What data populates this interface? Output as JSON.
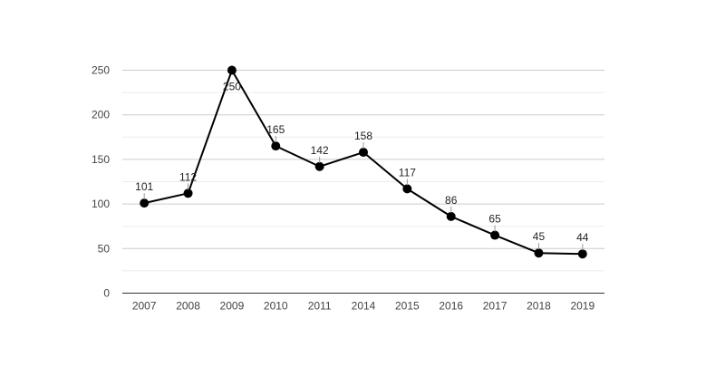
{
  "chart_data": {
    "type": "line",
    "title": "",
    "xlabel": "",
    "ylabel": "",
    "categories": [
      "2007",
      "2008",
      "2009",
      "2010",
      "2011",
      "2014",
      "2015",
      "2016",
      "2017",
      "2018",
      "2019"
    ],
    "series": [
      {
        "values": [
          101,
          112,
          250,
          165,
          142,
          158,
          117,
          86,
          65,
          45,
          44
        ]
      }
    ],
    "ylim": [
      0,
      250
    ],
    "yticks": [
      0,
      50,
      100,
      150,
      200,
      250
    ],
    "minor_gridlines": [
      25,
      75,
      125,
      175,
      225
    ],
    "grid": true,
    "legend": "none",
    "data_labels": true,
    "colors": {
      "line": "#000000",
      "marker": "#000000",
      "grid_major": "#cccccc",
      "grid_minor": "#ebebeb",
      "axis": "#333333",
      "label_leader": "#999999",
      "text": "#222222",
      "tick_text": "#444444"
    }
  }
}
